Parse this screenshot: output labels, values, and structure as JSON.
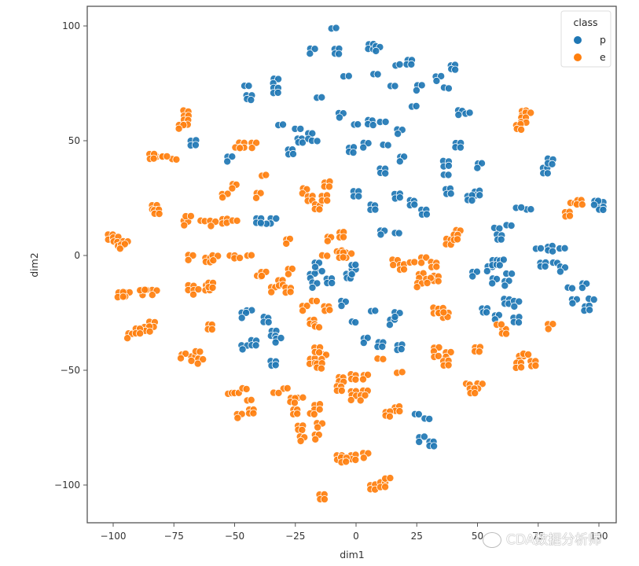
{
  "chart_data": {
    "type": "scatter",
    "title": "",
    "xlabel": "dim1",
    "ylabel": "dim2",
    "xlim": [
      -112,
      106
    ],
    "ylim": [
      -116,
      108
    ],
    "xticks": [
      -100,
      -75,
      -50,
      -25,
      0,
      25,
      50,
      75,
      100
    ],
    "xtick_labels": [
      "−100",
      "−75",
      "−50",
      "−25",
      "0",
      "25",
      "50",
      "75",
      "100"
    ],
    "yticks": [
      100,
      50,
      0,
      -50,
      -100
    ],
    "ytick_labels": [
      "100",
      "50",
      "0",
      "−50",
      "−100"
    ],
    "grid": false,
    "legend": {
      "title": "class",
      "position": "upper right",
      "entries": [
        {
          "label": "p",
          "color": "#1f77b4"
        },
        {
          "label": "e",
          "color": "#ff7f0e"
        }
      ]
    },
    "series": [
      {
        "name": "p",
        "color": "#1f77b4",
        "clusters": [
          [
            -9,
            98
          ],
          [
            -18,
            89
          ],
          [
            -8,
            89
          ],
          [
            6,
            91
          ],
          [
            9,
            90
          ],
          [
            -4,
            77
          ],
          [
            8,
            78
          ],
          [
            -15,
            68
          ],
          [
            -6,
            61
          ],
          [
            -33,
            76
          ],
          [
            -33,
            72
          ],
          [
            -45,
            73
          ],
          [
            -44,
            69
          ],
          [
            -31,
            56
          ],
          [
            -24,
            54
          ],
          [
            -23,
            50
          ],
          [
            -27,
            45
          ],
          [
            -19,
            52
          ],
          [
            -17,
            49
          ],
          [
            0,
            56
          ],
          [
            6,
            58
          ],
          [
            11,
            57
          ],
          [
            -2,
            46
          ],
          [
            4,
            48
          ],
          [
            12,
            47
          ],
          [
            11,
            37
          ],
          [
            19,
            42
          ],
          [
            18,
            54
          ],
          [
            24,
            64
          ],
          [
            26,
            73
          ],
          [
            22,
            84
          ],
          [
            17,
            82
          ],
          [
            15,
            73
          ],
          [
            34,
            77
          ],
          [
            37,
            72
          ],
          [
            40,
            82
          ],
          [
            43,
            62
          ],
          [
            46,
            61
          ],
          [
            -67,
            49
          ],
          [
            -52,
            42
          ],
          [
            37,
            40
          ],
          [
            37,
            34
          ],
          [
            38,
            28
          ],
          [
            42,
            48
          ],
          [
            51,
            39
          ],
          [
            50,
            27
          ],
          [
            47,
            25
          ],
          [
            58,
            11
          ],
          [
            63,
            12
          ],
          [
            59,
            8
          ],
          [
            71,
            19
          ],
          [
            67,
            20
          ],
          [
            78,
            37
          ],
          [
            80,
            41
          ],
          [
            101,
            22
          ],
          [
            101,
            19
          ],
          [
            99,
            23
          ],
          [
            0,
            27
          ],
          [
            7,
            21
          ],
          [
            11,
            10
          ],
          [
            17,
            9
          ],
          [
            17,
            26
          ],
          [
            23,
            23
          ],
          [
            28,
            19
          ],
          [
            -34,
            15
          ],
          [
            -38,
            13
          ],
          [
            -40,
            15
          ],
          [
            -15,
            -8
          ],
          [
            -11,
            -11
          ],
          [
            -18,
            -9
          ],
          [
            -17,
            -13
          ],
          [
            -16,
            -4
          ],
          [
            -3,
            -9
          ],
          [
            -1,
            -7
          ],
          [
            -1,
            -5
          ],
          [
            -44,
            -25
          ],
          [
            -46,
            -26
          ],
          [
            -46,
            -40
          ],
          [
            -42,
            -38
          ],
          [
            -37,
            -28
          ],
          [
            -34,
            -34
          ],
          [
            -32,
            -37
          ],
          [
            -34,
            -47
          ],
          [
            -5,
            -21
          ],
          [
            7,
            -25
          ],
          [
            15,
            -29
          ],
          [
            17,
            -26
          ],
          [
            -1,
            -30
          ],
          [
            4,
            -37
          ],
          [
            10,
            -39
          ],
          [
            18,
            -40
          ],
          [
            49,
            -8
          ],
          [
            55,
            -6
          ],
          [
            57,
            -3
          ],
          [
            60,
            -3
          ],
          [
            57,
            -11
          ],
          [
            62,
            -12
          ],
          [
            63,
            -9
          ],
          [
            53,
            -24
          ],
          [
            58,
            -27
          ],
          [
            62,
            -20
          ],
          [
            66,
            -21
          ],
          [
            66,
            -28
          ],
          [
            75,
            2
          ],
          [
            80,
            3
          ],
          [
            85,
            2
          ],
          [
            77,
            -4
          ],
          [
            82,
            -4
          ],
          [
            85,
            -6
          ],
          [
            94,
            -13
          ],
          [
            97,
            -20
          ],
          [
            90,
            -20
          ],
          [
            88,
            -15
          ],
          [
            95,
            -23
          ],
          [
            25,
            -70
          ],
          [
            29,
            -72
          ],
          [
            27,
            -80
          ],
          [
            31,
            -82
          ]
        ]
      },
      {
        "name": "e",
        "color": "#ff7f0e",
        "clusters": [
          [
            -70,
            62
          ],
          [
            -70,
            58
          ],
          [
            -72,
            56
          ],
          [
            -81,
            42
          ],
          [
            -84,
            43
          ],
          [
            -75,
            41
          ],
          [
            -79,
            42
          ],
          [
            -47,
            48
          ],
          [
            -42,
            48
          ],
          [
            -49,
            46
          ],
          [
            -38,
            34
          ],
          [
            -40,
            26
          ],
          [
            -50,
            30
          ],
          [
            -54,
            26
          ],
          [
            -83,
            21
          ],
          [
            -82,
            19
          ],
          [
            -70,
            14
          ],
          [
            -69,
            16
          ],
          [
            -63,
            14
          ],
          [
            -59,
            14
          ],
          [
            -54,
            15
          ],
          [
            -50,
            14
          ],
          [
            -101,
            8
          ],
          [
            -99,
            7
          ],
          [
            -95,
            5
          ],
          [
            -97,
            3
          ],
          [
            -96,
            4
          ],
          [
            -28,
            6
          ],
          [
            -21,
            28
          ],
          [
            -19,
            25
          ],
          [
            -16,
            21
          ],
          [
            -12,
            31
          ],
          [
            -13,
            25
          ],
          [
            -6,
            9
          ],
          [
            -11,
            7
          ],
          [
            -13,
            -1
          ],
          [
            -7,
            1
          ],
          [
            -3,
            0
          ],
          [
            -6,
            0
          ],
          [
            -68,
            -1
          ],
          [
            -61,
            -2
          ],
          [
            -58,
            -1
          ],
          [
            -51,
            -1
          ],
          [
            -44,
            -1
          ],
          [
            -49,
            -2
          ],
          [
            -83,
            -16
          ],
          [
            -87,
            -16
          ],
          [
            -94,
            -17
          ],
          [
            -97,
            -17
          ],
          [
            -88,
            -16
          ],
          [
            -68,
            -14
          ],
          [
            -66,
            -16
          ],
          [
            -61,
            -14
          ],
          [
            -60,
            -13
          ],
          [
            -40,
            -10
          ],
          [
            -38,
            -8
          ],
          [
            -34,
            -15
          ],
          [
            -31,
            -12
          ],
          [
            -27,
            -7
          ],
          [
            -28,
            -15
          ],
          [
            -21,
            -23
          ],
          [
            -17,
            -21
          ],
          [
            -12,
            -23
          ],
          [
            -18,
            -29
          ],
          [
            -16,
            -32
          ],
          [
            -84,
            -30
          ],
          [
            -86,
            -32
          ],
          [
            -93,
            -35
          ],
          [
            -90,
            -33
          ],
          [
            -60,
            -31
          ],
          [
            -67,
            -45
          ],
          [
            -71,
            -44
          ],
          [
            -64,
            -46
          ],
          [
            -65,
            -43
          ],
          [
            -18,
            -46
          ],
          [
            -13,
            -44
          ],
          [
            -15,
            -48
          ],
          [
            -16,
            -41
          ],
          [
            -52,
            -61
          ],
          [
            -49,
            -61
          ],
          [
            -46,
            -59
          ],
          [
            -44,
            -64
          ],
          [
            -43,
            -68
          ],
          [
            -48,
            -70
          ],
          [
            -23,
            -63
          ],
          [
            -25,
            -68
          ],
          [
            -23,
            -75
          ],
          [
            -22,
            -80
          ],
          [
            -16,
            -66
          ],
          [
            -15,
            -74
          ],
          [
            -16,
            -79
          ],
          [
            -18,
            -70
          ],
          [
            -1,
            -53
          ],
          [
            4,
            -53
          ],
          [
            -1,
            -60
          ],
          [
            4,
            -60
          ],
          [
            -1,
            -62
          ],
          [
            3,
            -62
          ],
          [
            10,
            -46
          ],
          [
            18,
            -52
          ],
          [
            17,
            -67
          ],
          [
            13,
            -69
          ],
          [
            -1,
            -88
          ],
          [
            4,
            -87
          ],
          [
            -7,
            -88
          ],
          [
            -5,
            -89
          ],
          [
            7,
            -101
          ],
          [
            11,
            -100
          ],
          [
            13,
            -98
          ],
          [
            -14,
            -105
          ],
          [
            16,
            -3
          ],
          [
            19,
            -5
          ],
          [
            23,
            -4
          ],
          [
            28,
            -2
          ],
          [
            27,
            -9
          ],
          [
            32,
            -4
          ],
          [
            33,
            -10
          ],
          [
            26,
            -13
          ],
          [
            30,
            -11
          ],
          [
            42,
            10
          ],
          [
            38,
            6
          ],
          [
            41,
            8
          ],
          [
            33,
            -24
          ],
          [
            37,
            -26
          ],
          [
            35,
            -24
          ],
          [
            33,
            -41
          ],
          [
            38,
            -43
          ],
          [
            33,
            -45
          ],
          [
            37,
            -47
          ],
          [
            50,
            -41
          ],
          [
            46,
            -57
          ],
          [
            51,
            -57
          ],
          [
            48,
            -59
          ],
          [
            61,
            -33
          ],
          [
            59,
            -31
          ],
          [
            68,
            -45
          ],
          [
            73,
            -47
          ],
          [
            70,
            -44
          ],
          [
            67,
            -48
          ],
          [
            80,
            -31
          ],
          [
            69,
            62
          ],
          [
            71,
            61
          ],
          [
            69,
            59
          ],
          [
            67,
            56
          ],
          [
            89,
            22
          ],
          [
            92,
            23
          ],
          [
            87,
            18
          ],
          [
            -29,
            -59
          ],
          [
            -33,
            -61
          ],
          [
            -26,
            -63
          ],
          [
            -6,
            -54
          ],
          [
            -7,
            -58
          ]
        ]
      }
    ]
  },
  "watermark": {
    "text": "CDA数据分析师",
    "icon": "wechat-icon"
  }
}
